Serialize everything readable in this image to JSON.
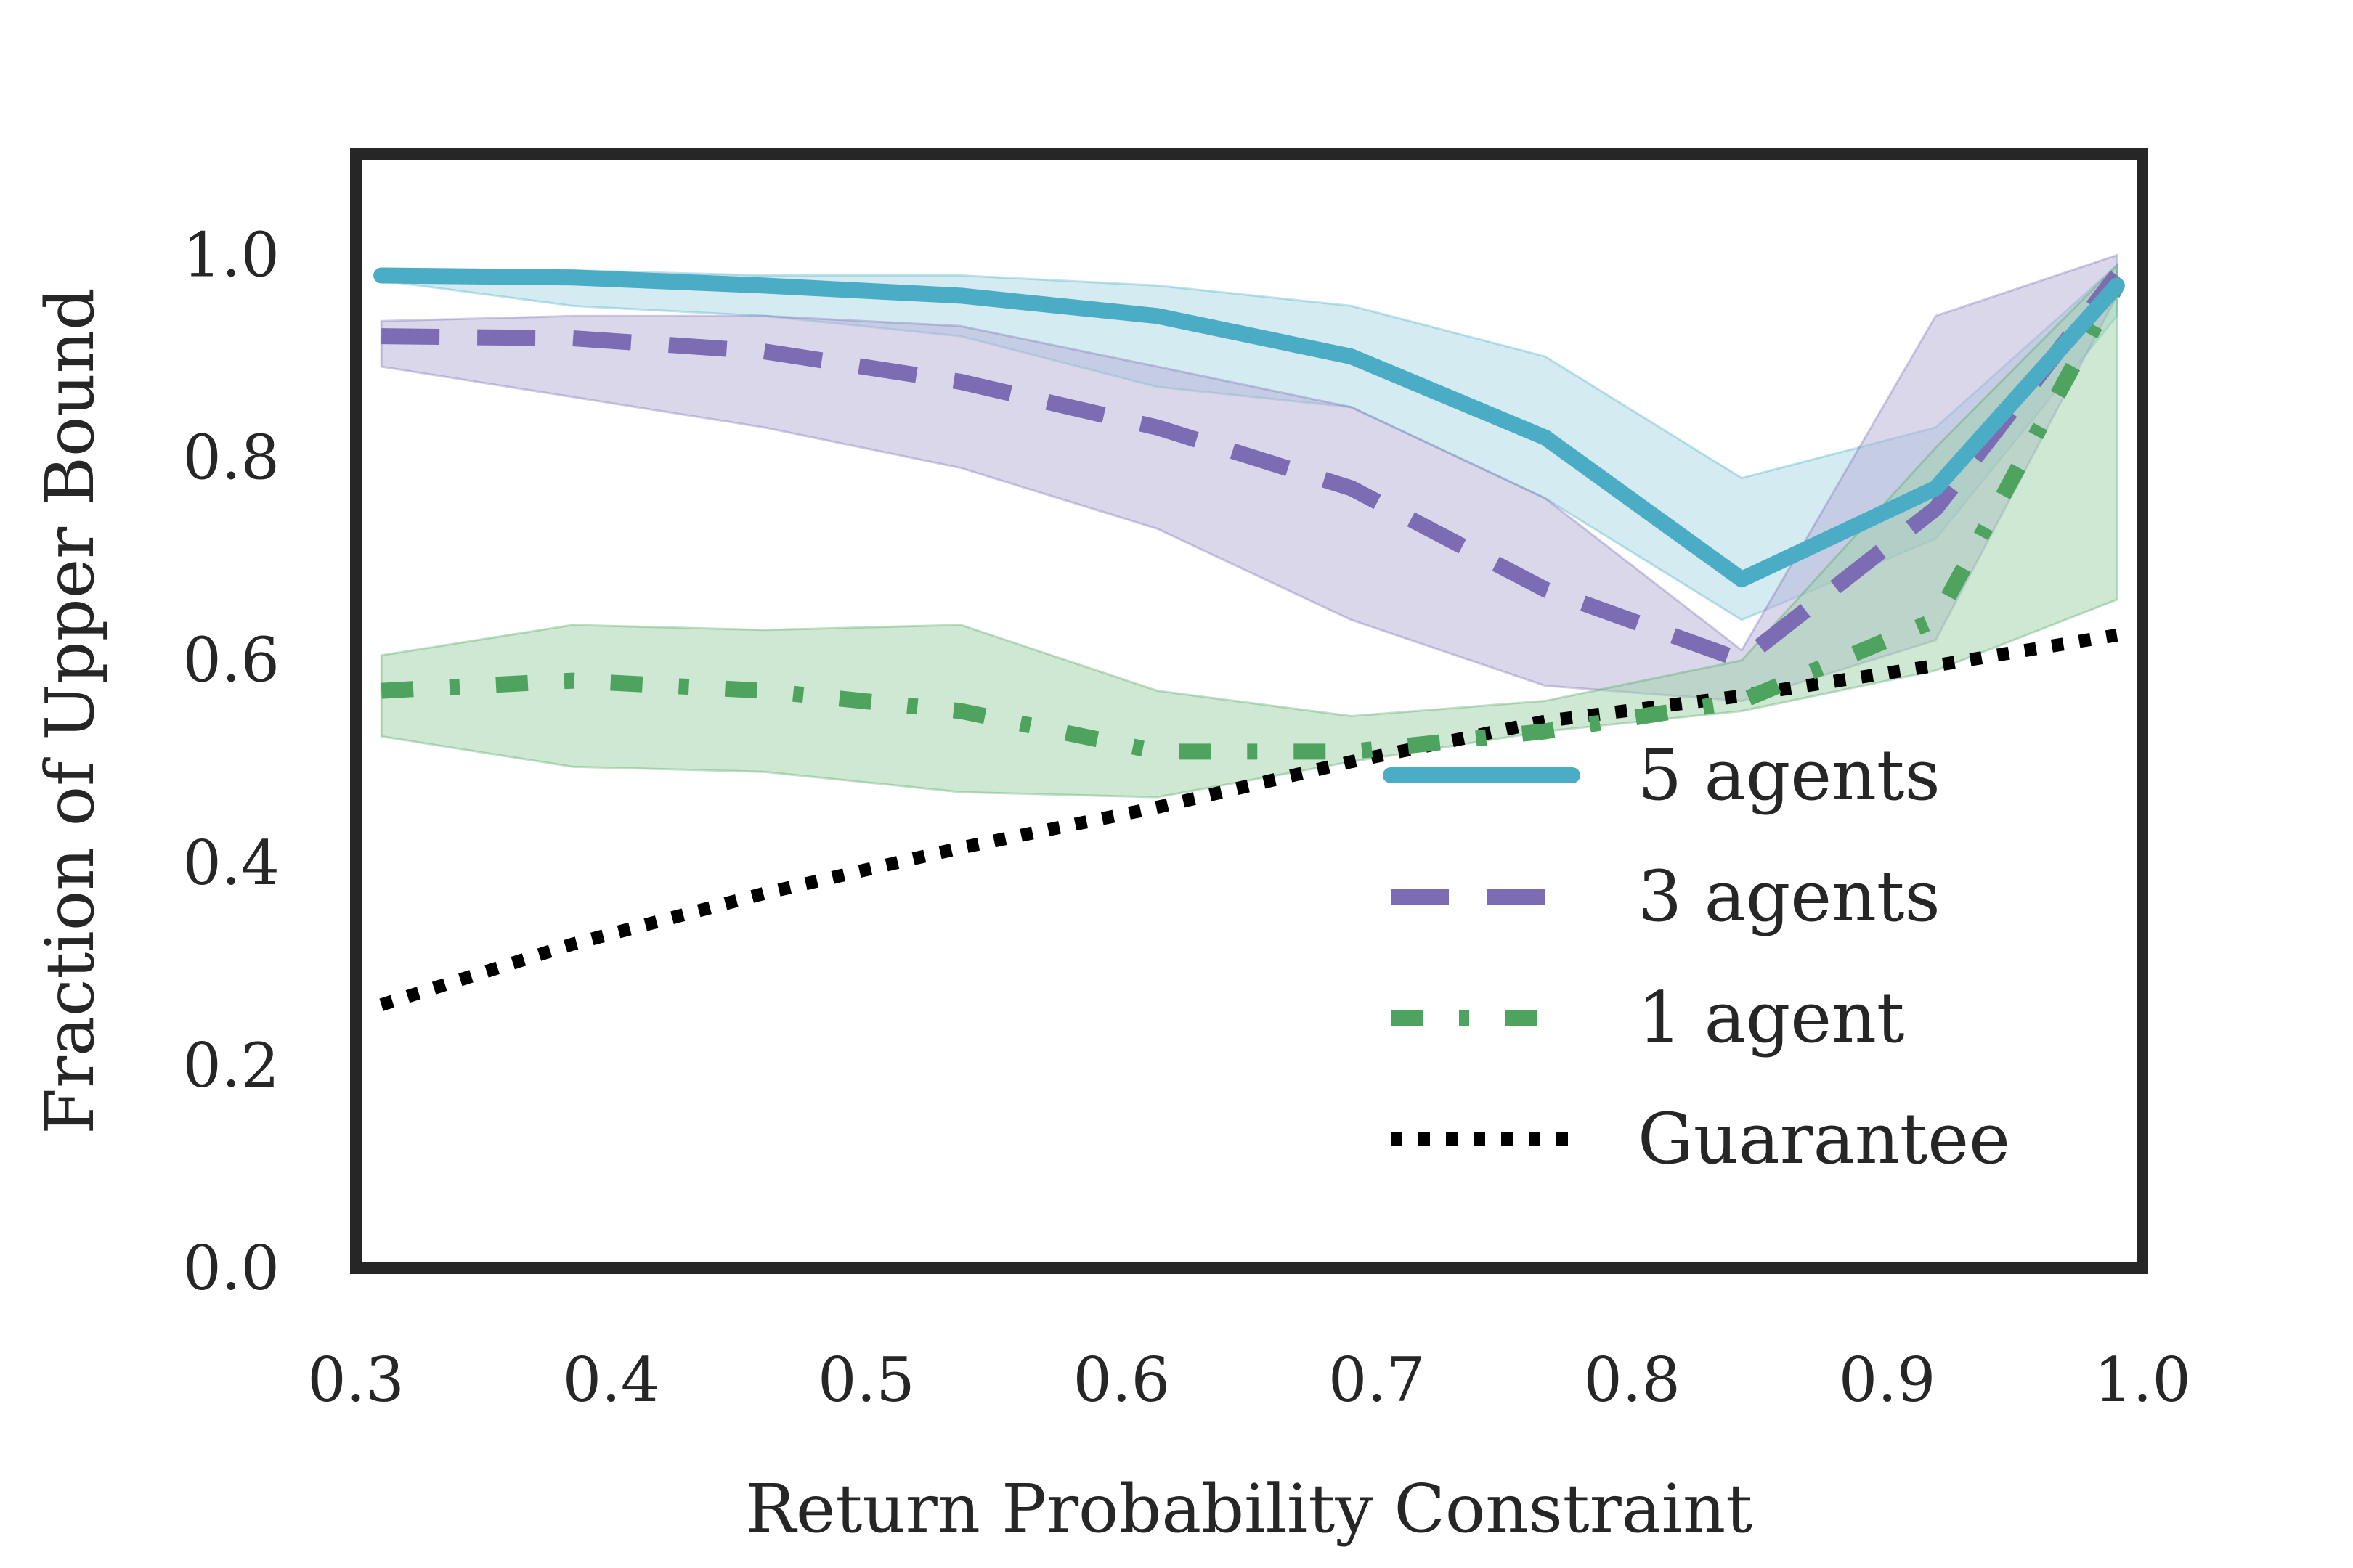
{
  "chart_data": {
    "type": "line",
    "title": "",
    "xlabel": "Return Probability Constraint",
    "ylabel": "Fraction of Upper Bound",
    "xlim": [
      0.3,
      1.0
    ],
    "ylim": [
      0.0,
      1.1
    ],
    "xticks": [
      0.3,
      0.4,
      0.5,
      0.6,
      0.7,
      0.8,
      0.9,
      1.0
    ],
    "xtick_labels": [
      "0.3",
      "0.4",
      "0.5",
      "0.6",
      "0.7",
      "0.8",
      "0.9",
      "1.0"
    ],
    "yticks": [
      0.0,
      0.2,
      0.4,
      0.6,
      0.8,
      1.0
    ],
    "ytick_labels": [
      "0.0",
      "0.2",
      "0.4",
      "0.6",
      "0.8",
      "1.0"
    ],
    "grid": false,
    "legend_position": "lower-right",
    "x": [
      0.31,
      0.385,
      0.46,
      0.537,
      0.614,
      0.69,
      0.766,
      0.843,
      0.919,
      0.99
    ],
    "series": [
      {
        "name": "5 agents",
        "style": "solid",
        "color": "#4bacc6",
        "band_color": "#a8d7e3",
        "values": [
          0.98,
          0.978,
          0.97,
          0.96,
          0.94,
          0.9,
          0.82,
          0.68,
          0.77,
          0.97
        ],
        "lower": [
          0.975,
          0.95,
          0.94,
          0.92,
          0.87,
          0.85,
          0.76,
          0.64,
          0.72,
          0.94
        ],
        "upper": [
          0.985,
          0.985,
          0.98,
          0.98,
          0.97,
          0.95,
          0.9,
          0.78,
          0.83,
          0.99
        ]
      },
      {
        "name": "3 agents",
        "style": "dashed",
        "color": "#7c6cb4",
        "band_color": "#b7b0d8",
        "values": [
          0.92,
          0.918,
          0.905,
          0.875,
          0.83,
          0.77,
          0.67,
          0.6,
          0.75,
          0.98
        ],
        "lower": [
          0.89,
          0.86,
          0.83,
          0.79,
          0.73,
          0.64,
          0.575,
          0.56,
          0.62,
          0.96
        ],
        "upper": [
          0.935,
          0.94,
          0.94,
          0.93,
          0.89,
          0.85,
          0.76,
          0.61,
          0.94,
          1.0
        ]
      },
      {
        "name": "1 agent",
        "style": "dashdot",
        "color": "#4ea35f",
        "band_color": "#9fd1a9",
        "values": [
          0.57,
          0.58,
          0.57,
          0.55,
          0.51,
          0.51,
          0.53,
          0.56,
          0.64,
          0.97
        ],
        "lower": [
          0.525,
          0.495,
          0.49,
          0.47,
          0.465,
          0.5,
          0.53,
          0.55,
          0.59,
          0.66
        ],
        "upper": [
          0.605,
          0.635,
          0.63,
          0.635,
          0.57,
          0.545,
          0.56,
          0.6,
          0.81,
          0.99
        ]
      },
      {
        "name": "Guarantee",
        "style": "dotted",
        "color": "#000000",
        "values": [
          0.26,
          0.32,
          0.37,
          0.415,
          0.455,
          0.5,
          0.54,
          0.565,
          0.595,
          0.625
        ]
      }
    ]
  }
}
